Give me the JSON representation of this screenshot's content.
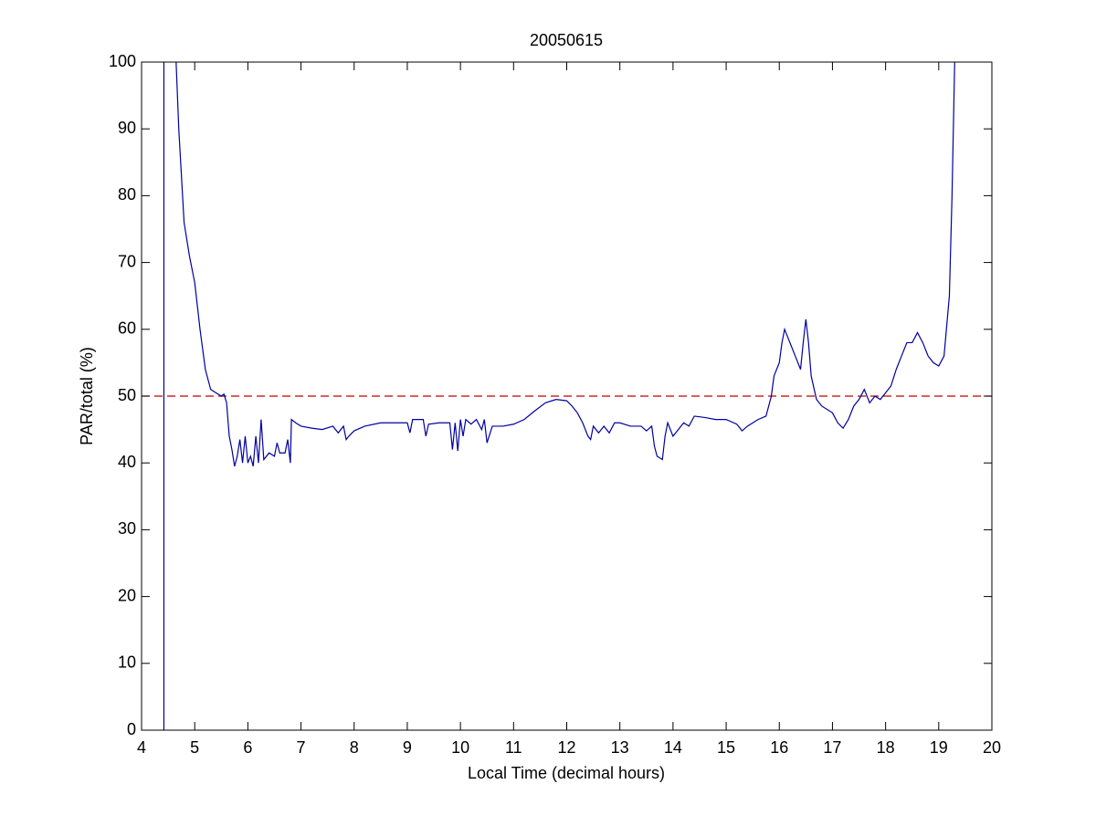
{
  "chart_data": {
    "type": "line",
    "title": "20050615",
    "xlabel": "Local Time (decimal hours)",
    "ylabel": "PAR/total (%)",
    "x": [
      4.42,
      4.42,
      4.5,
      4.65,
      4.7,
      4.8,
      4.9,
      5.0,
      5.1,
      5.2,
      5.3,
      5.4,
      5.5,
      5.55,
      5.6,
      5.65,
      5.7,
      5.75,
      5.8,
      5.85,
      5.9,
      5.95,
      6.0,
      6.05,
      6.1,
      6.15,
      6.2,
      6.25,
      6.3,
      6.4,
      6.5,
      6.55,
      6.6,
      6.7,
      6.75,
      6.8,
      6.82,
      6.9,
      7.0,
      7.2,
      7.4,
      7.6,
      7.7,
      7.8,
      7.85,
      7.9,
      8.0,
      8.2,
      8.5,
      8.8,
      9.0,
      9.05,
      9.1,
      9.3,
      9.35,
      9.4,
      9.6,
      9.8,
      9.85,
      9.9,
      9.95,
      10.0,
      10.05,
      10.1,
      10.2,
      10.3,
      10.4,
      10.45,
      10.5,
      10.6,
      10.8,
      11.0,
      11.2,
      11.4,
      11.6,
      11.8,
      12.0,
      12.1,
      12.2,
      12.3,
      12.4,
      12.45,
      12.5,
      12.6,
      12.7,
      12.8,
      12.9,
      13.0,
      13.2,
      13.4,
      13.5,
      13.6,
      13.65,
      13.7,
      13.8,
      13.85,
      13.9,
      14.0,
      14.1,
      14.2,
      14.3,
      14.4,
      14.6,
      14.8,
      15.0,
      15.2,
      15.3,
      15.4,
      15.6,
      15.75,
      15.85,
      15.9,
      16.0,
      16.05,
      16.1,
      16.2,
      16.3,
      16.4,
      16.45,
      16.5,
      16.55,
      16.6,
      16.7,
      16.8,
      17.0,
      17.1,
      17.2,
      17.3,
      17.4,
      17.5,
      17.6,
      17.7,
      17.8,
      17.9,
      18.0,
      18.1,
      18.2,
      18.3,
      18.4,
      18.5,
      18.6,
      18.7,
      18.8,
      18.9,
      19.0,
      19.1,
      19.2,
      19.25,
      19.3
    ],
    "series": [
      {
        "color": "#0000a0",
        "values": [
          0,
          100,
          null,
          100,
          90,
          76,
          71,
          67,
          60,
          54,
          51,
          50.5,
          50,
          50.3,
          49,
          44,
          42,
          39.5,
          41,
          43.5,
          40,
          44,
          40,
          41,
          39.5,
          44,
          40,
          46.5,
          40.5,
          41.5,
          41,
          43,
          41.5,
          41.5,
          43.5,
          40,
          46.5,
          46,
          45.5,
          45.2,
          45,
          45.5,
          44.5,
          45.5,
          43.5,
          44,
          44.8,
          45.5,
          46,
          46,
          46,
          44.5,
          46.5,
          46.5,
          44,
          45.8,
          46,
          46,
          42,
          46,
          41.8,
          46.5,
          44,
          46.5,
          45.8,
          46.5,
          45,
          46.5,
          43,
          45.5,
          45.5,
          45.8,
          46.5,
          47.8,
          49,
          49.5,
          49.3,
          48.5,
          47.5,
          46,
          44,
          43.5,
          45.5,
          44.5,
          45.5,
          44.5,
          46,
          46,
          45.5,
          45.5,
          44.8,
          45.5,
          42.5,
          41,
          40.5,
          44,
          46,
          44,
          45,
          46,
          45.5,
          47,
          46.8,
          46.5,
          46.5,
          45.8,
          44.8,
          45.5,
          46.5,
          47,
          50,
          53,
          55,
          58,
          60,
          58,
          56,
          54,
          58,
          61.5,
          58,
          53,
          49.5,
          48.5,
          47.5,
          46,
          45.2,
          46.5,
          48.5,
          49.5,
          51,
          49,
          50,
          49.5,
          50.5,
          51.5,
          54,
          56,
          58,
          58,
          59.5,
          58,
          56,
          55,
          54.5,
          56,
          65,
          80,
          100
        ]
      }
    ],
    "hline": {
      "value": 50,
      "color": "#c00000"
    },
    "xlim": [
      4,
      20
    ],
    "xticks": [
      4,
      5,
      6,
      7,
      8,
      9,
      10,
      11,
      12,
      13,
      14,
      15,
      16,
      17,
      18,
      19,
      20
    ],
    "ylim": [
      0,
      100
    ],
    "yticks": [
      0,
      10,
      20,
      30,
      40,
      50,
      60,
      70,
      80,
      90,
      100
    ]
  }
}
